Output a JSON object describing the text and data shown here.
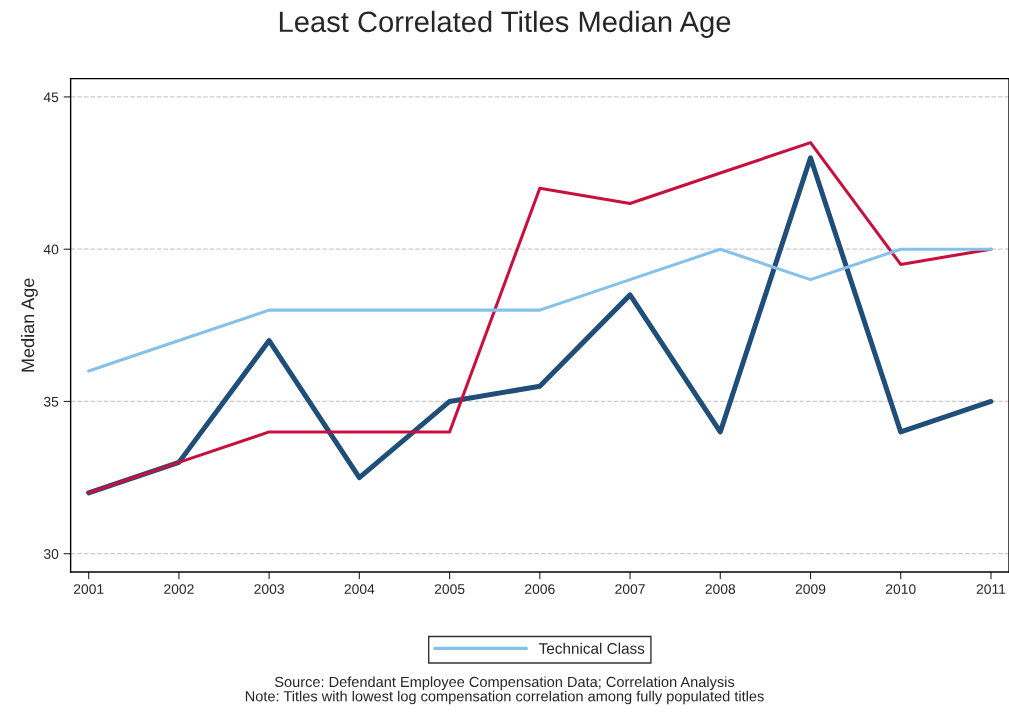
{
  "chart_data": {
    "type": "line",
    "title": "Least Correlated Titles Median Age",
    "ylabel": "Median Age",
    "x": [
      2001,
      2002,
      2003,
      2004,
      2005,
      2006,
      2007,
      2008,
      2009,
      2010,
      2011
    ],
    "series": [
      {
        "color": "#1f4e79",
        "values": [
          32,
          33,
          37,
          32.5,
          35,
          35.5,
          38.5,
          34,
          43,
          34,
          35
        ]
      },
      {
        "color": "#c8103e",
        "values": [
          32,
          33,
          34,
          34,
          34,
          42,
          41.5,
          42.5,
          43.5,
          39.5,
          40
        ]
      },
      {
        "name": "Technical Class",
        "color": "#85c1e9",
        "values": [
          36,
          37,
          38,
          38,
          38,
          38,
          39,
          40,
          39,
          40,
          40
        ]
      }
    ],
    "xlim": [
      2000.8,
      2011.2
    ],
    "xticks": [
      2001,
      2002,
      2003,
      2004,
      2005,
      2006,
      2007,
      2008,
      2009,
      2010,
      2011
    ],
    "ylim": [
      29.4,
      45.6
    ],
    "yticks": [
      30,
      35,
      40,
      45
    ],
    "grid": "y",
    "legend": "bottom",
    "marker": "none",
    "line_style": "solid",
    "annotations": [
      "Source: Defendant Employee Compensation Data; Correlation Analysis",
      "Note: Titles with lowest log compensation correlation among fully populated titles"
    ]
  }
}
